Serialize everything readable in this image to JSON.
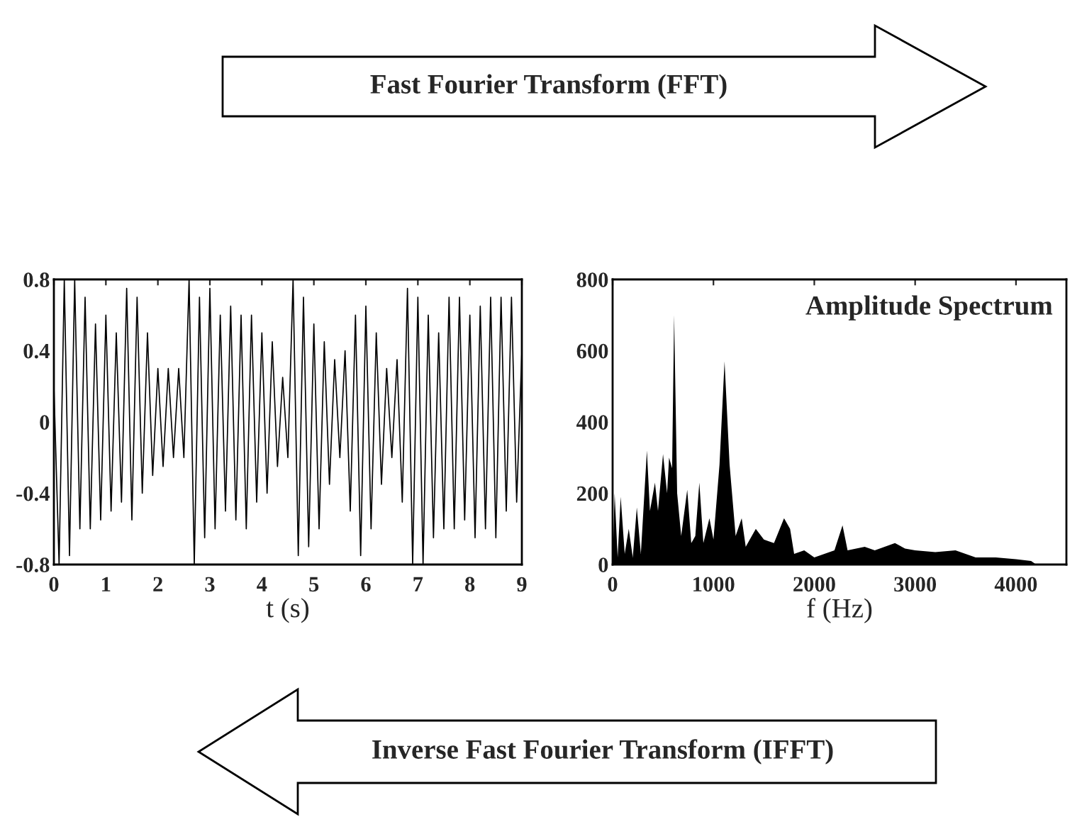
{
  "chart_data": [
    {
      "type": "line",
      "xlabel": "t (s)",
      "annotations": [
        "Fast Fourier Transform (FFT)"
      ],
      "xlim": [
        0,
        9
      ],
      "xticks": [
        0,
        1,
        2,
        3,
        4,
        5,
        6,
        7,
        8,
        9
      ],
      "ylim": [
        -0.8,
        0.8
      ],
      "yticks": [
        {
          "value": -0.8,
          "label": "-0.8"
        },
        {
          "value": -0.4,
          "label": "-0.4"
        },
        0,
        0.4,
        0.8
      ],
      "grid": false,
      "legend": false,
      "series": [
        {
          "color": "#000000",
          "x": [
            0,
            0.1,
            0.2,
            0.3,
            0.4,
            0.5,
            0.6,
            0.7,
            0.8,
            0.9,
            1.0,
            1.1,
            1.2,
            1.3,
            1.4,
            1.5,
            1.6,
            1.7,
            1.8,
            1.9,
            2.0,
            2.1,
            2.2,
            2.3,
            2.4,
            2.5,
            2.6,
            2.7,
            2.8,
            2.9,
            3.0,
            3.1,
            3.2,
            3.3,
            3.4,
            3.5,
            3.6,
            3.7,
            3.8,
            3.9,
            4.0,
            4.1,
            4.2,
            4.3,
            4.4,
            4.5,
            4.6,
            4.7,
            4.8,
            4.9,
            5.0,
            5.1,
            5.2,
            5.3,
            5.4,
            5.5,
            5.6,
            5.7,
            5.8,
            5.9,
            6.0,
            6.1,
            6.2,
            6.3,
            6.4,
            6.5,
            6.6,
            6.7,
            6.8,
            6.9,
            7.0,
            7.1,
            7.2,
            7.3,
            7.4,
            7.5,
            7.6,
            7.7,
            7.8,
            7.9,
            8.0,
            8.1,
            8.2,
            8.3,
            8.4,
            8.5,
            8.6,
            8.7,
            8.8,
            8.9,
            9.0
          ],
          "values": [
            0.2,
            -0.8,
            0.8,
            -0.75,
            0.8,
            -0.6,
            0.7,
            -0.6,
            0.55,
            -0.55,
            0.6,
            -0.5,
            0.5,
            -0.45,
            0.75,
            -0.55,
            0.7,
            -0.4,
            0.5,
            -0.3,
            0.3,
            -0.25,
            0.3,
            -0.2,
            0.3,
            -0.2,
            0.8,
            -0.8,
            0.7,
            -0.65,
            0.75,
            -0.6,
            0.6,
            -0.5,
            0.65,
            -0.55,
            0.6,
            -0.6,
            0.6,
            -0.45,
            0.5,
            -0.4,
            0.45,
            -0.25,
            0.25,
            -0.2,
            0.8,
            -0.75,
            0.7,
            -0.7,
            0.55,
            -0.6,
            0.45,
            -0.35,
            0.35,
            -0.2,
            0.4,
            -0.5,
            0.6,
            -0.75,
            0.65,
            -0.6,
            0.5,
            -0.35,
            0.3,
            -0.2,
            0.35,
            -0.45,
            0.75,
            -0.8,
            0.7,
            -0.8,
            0.6,
            -0.65,
            0.5,
            -0.6,
            0.7,
            -0.6,
            0.7,
            -0.55,
            0.6,
            -0.65,
            0.65,
            -0.6,
            0.7,
            -0.65,
            0.7,
            -0.5,
            0.7,
            -0.45,
            0.4
          ]
        }
      ]
    },
    {
      "type": "area",
      "title": "Amplitude Spectrum",
      "xlabel": "f (Hz)",
      "annotations": [
        "Inverse Fast Fourier Transform (IFFT)"
      ],
      "xlim": [
        0,
        4500
      ],
      "xticks": [
        0,
        1000,
        2000,
        3000,
        4000
      ],
      "ylim": [
        0,
        800
      ],
      "yticks": [
        0,
        200,
        400,
        600,
        800
      ],
      "grid": false,
      "legend": false,
      "series": [
        {
          "color": "#000000",
          "x": [
            0,
            20,
            50,
            80,
            120,
            160,
            200,
            240,
            280,
            340,
            370,
            420,
            450,
            500,
            540,
            560,
            590,
            610,
            640,
            680,
            740,
            780,
            820,
            860,
            900,
            960,
            1000,
            1060,
            1110,
            1160,
            1220,
            1280,
            1320,
            1420,
            1500,
            1600,
            1700,
            1760,
            1800,
            1900,
            2000,
            2100,
            2200,
            2280,
            2330,
            2500,
            2600,
            2800,
            2900,
            3000,
            3200,
            3400,
            3600,
            3800,
            4000,
            4150,
            4200,
            4500
          ],
          "values": [
            0,
            200,
            20,
            190,
            30,
            100,
            20,
            160,
            30,
            320,
            150,
            230,
            150,
            310,
            200,
            300,
            270,
            700,
            200,
            80,
            210,
            60,
            80,
            230,
            60,
            130,
            70,
            280,
            570,
            280,
            80,
            130,
            50,
            100,
            70,
            60,
            130,
            100,
            30,
            40,
            20,
            30,
            40,
            110,
            40,
            50,
            40,
            60,
            45,
            40,
            35,
            40,
            20,
            20,
            15,
            10,
            0,
            0
          ]
        }
      ]
    }
  ]
}
